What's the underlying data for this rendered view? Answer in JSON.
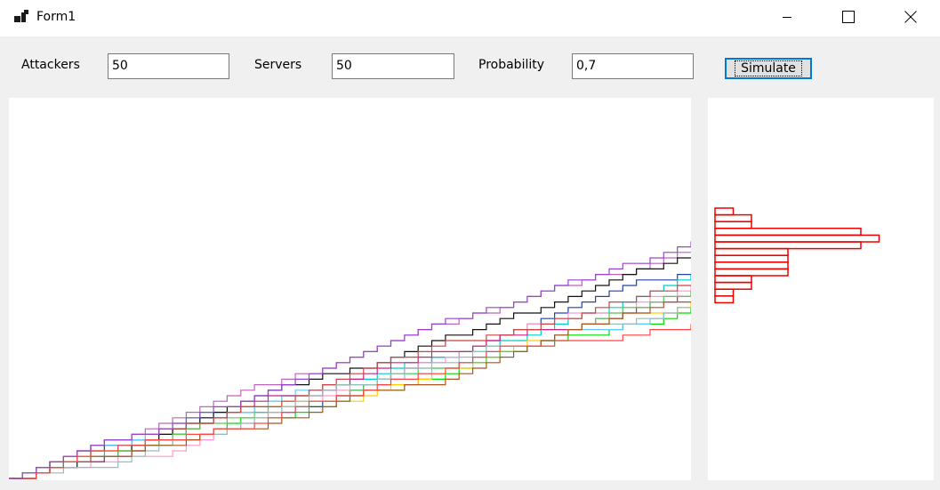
{
  "window": {
    "title": "Form1",
    "icons": [
      "app-icon",
      "minimize-icon",
      "maximize-icon",
      "close-icon"
    ]
  },
  "form": {
    "attackers_label": "Attackers",
    "attackers_value": "50",
    "servers_label": "Servers",
    "servers_value": "50",
    "probability_label": "Probability",
    "probability_value": "0,7",
    "simulate_label": "Simulate"
  },
  "simulation": {
    "steps": 50,
    "probability": 0.7,
    "colors": [
      "#00dd00",
      "#bb66bb",
      "#2244aa",
      "#00cccc",
      "#66ccff",
      "#ff99cc",
      "#ffcc00",
      "#111111",
      "#cc2288",
      "#55cc55",
      "#cc4444",
      "#99bbbb",
      "#aa5522",
      "#ff4444",
      "#9944cc"
    ]
  },
  "histogram": {
    "color": "#ee0000",
    "values": [
      1,
      2,
      2,
      8,
      9,
      8,
      4,
      4,
      4,
      4,
      2,
      2,
      1,
      1
    ]
  }
}
